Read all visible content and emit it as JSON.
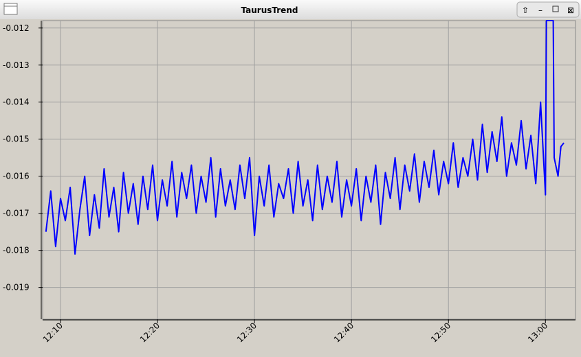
{
  "window": {
    "title": "TaurusTrend"
  },
  "chart_data": {
    "type": "line",
    "color": "#0000ff",
    "grid": true,
    "xlim": [
      8.16,
      63.1
    ],
    "ylim": [
      -0.01986,
      -0.0118
    ],
    "xticks": [
      {
        "value": 10,
        "label": "12:10"
      },
      {
        "value": 20,
        "label": "12:20"
      },
      {
        "value": 30,
        "label": "12:30"
      },
      {
        "value": 40,
        "label": "12:40"
      },
      {
        "value": 50,
        "label": "12:50"
      },
      {
        "value": 60,
        "label": "13:00"
      }
    ],
    "yticks": [
      -0.012,
      -0.013,
      -0.014,
      -0.015,
      -0.016,
      -0.017,
      -0.018,
      -0.019
    ],
    "x": [
      8.5,
      9,
      9.5,
      10,
      10.5,
      11,
      11.5,
      12,
      12.5,
      13,
      13.5,
      14,
      14.5,
      15,
      15.5,
      16,
      16.5,
      17,
      17.5,
      18,
      18.5,
      19,
      19.5,
      20,
      20.5,
      21,
      21.5,
      22,
      22.5,
      23,
      23.5,
      24,
      24.5,
      25,
      25.5,
      26,
      26.5,
      27,
      27.5,
      28,
      28.5,
      29,
      29.5,
      30,
      30.5,
      31,
      31.5,
      32,
      32.5,
      33,
      33.5,
      34,
      34.5,
      35,
      35.5,
      36,
      36.5,
      37,
      37.5,
      38,
      38.5,
      39,
      39.5,
      40,
      40.5,
      41,
      41.5,
      42,
      42.5,
      43,
      43.5,
      44,
      44.5,
      45,
      45.5,
      46,
      46.5,
      47,
      47.5,
      48,
      48.5,
      49,
      49.5,
      50,
      50.5,
      51,
      51.5,
      52,
      52.5,
      53,
      53.5,
      54,
      54.5,
      55,
      55.5,
      56,
      56.5,
      57,
      57.5,
      58,
      58.5,
      59,
      59.5,
      60,
      60.1,
      60.8,
      60.9,
      61.3,
      61.6,
      61.9
    ],
    "values": [
      -0.0175,
      -0.0164,
      -0.0179,
      -0.0166,
      -0.0172,
      -0.0163,
      -0.0181,
      -0.0169,
      -0.016,
      -0.0176,
      -0.0165,
      -0.0174,
      -0.0158,
      -0.0171,
      -0.0163,
      -0.0175,
      -0.0159,
      -0.017,
      -0.0162,
      -0.0173,
      -0.016,
      -0.0169,
      -0.0157,
      -0.0172,
      -0.0161,
      -0.0168,
      -0.0156,
      -0.0171,
      -0.0159,
      -0.0166,
      -0.0157,
      -0.017,
      -0.016,
      -0.0167,
      -0.0155,
      -0.0171,
      -0.0158,
      -0.0168,
      -0.0161,
      -0.0169,
      -0.0157,
      -0.0166,
      -0.0155,
      -0.0176,
      -0.016,
      -0.0168,
      -0.0157,
      -0.0171,
      -0.0162,
      -0.0166,
      -0.0158,
      -0.017,
      -0.0156,
      -0.0168,
      -0.0161,
      -0.0172,
      -0.0157,
      -0.0169,
      -0.016,
      -0.0167,
      -0.0156,
      -0.0171,
      -0.0161,
      -0.0168,
      -0.0158,
      -0.0172,
      -0.016,
      -0.0167,
      -0.0157,
      -0.0173,
      -0.0159,
      -0.0166,
      -0.0155,
      -0.0169,
      -0.0157,
      -0.0164,
      -0.0154,
      -0.0167,
      -0.0156,
      -0.0163,
      -0.0153,
      -0.0165,
      -0.0156,
      -0.0162,
      -0.0151,
      -0.0163,
      -0.0155,
      -0.016,
      -0.015,
      -0.0161,
      -0.0146,
      -0.0159,
      -0.0148,
      -0.0156,
      -0.0144,
      -0.016,
      -0.0151,
      -0.0157,
      -0.0145,
      -0.0158,
      -0.0149,
      -0.0162,
      -0.014,
      -0.0165,
      -0.0118,
      -0.0118,
      -0.0155,
      -0.016,
      -0.0152,
      -0.0151
    ]
  }
}
